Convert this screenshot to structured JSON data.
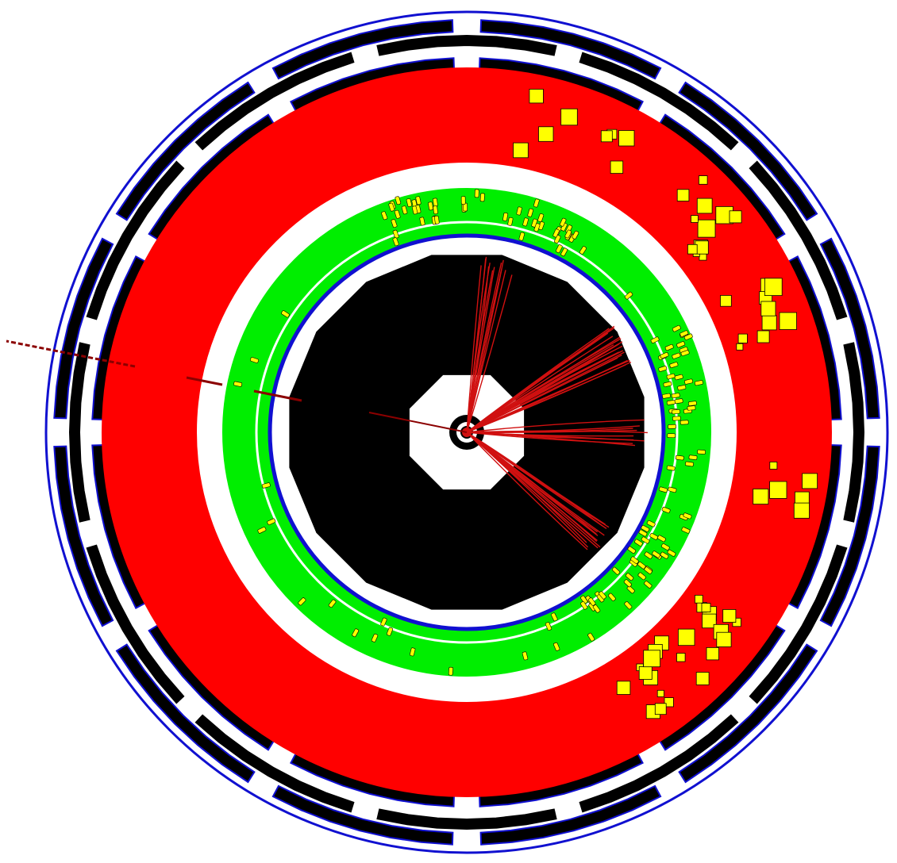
{
  "colors": {
    "background": "#ffffff",
    "muon_chamber": "#000000",
    "muon_chamber_outline": "#1010d0",
    "hadronic_calorimeter": "#ff0000",
    "electromagnetic_calorimeter": "#00ee00",
    "solenoid": "#1010d0",
    "inner_tracker": "#000000",
    "track": "#d01010",
    "energy_deposit": "#ffff00",
    "energy_deposit_outline": "#000000",
    "thin_ring": "#00ee00"
  },
  "detector_layers": [
    "muon-station-outer",
    "muon-station-middle",
    "muon-station-inner",
    "hadronic-calorimeter",
    "electromagnetic-calorimeter",
    "solenoid",
    "inner-tracker",
    "beam-pipe"
  ],
  "track_count": 62,
  "hcal_deposit_count": 45,
  "ecal_deposit_count": 150
}
